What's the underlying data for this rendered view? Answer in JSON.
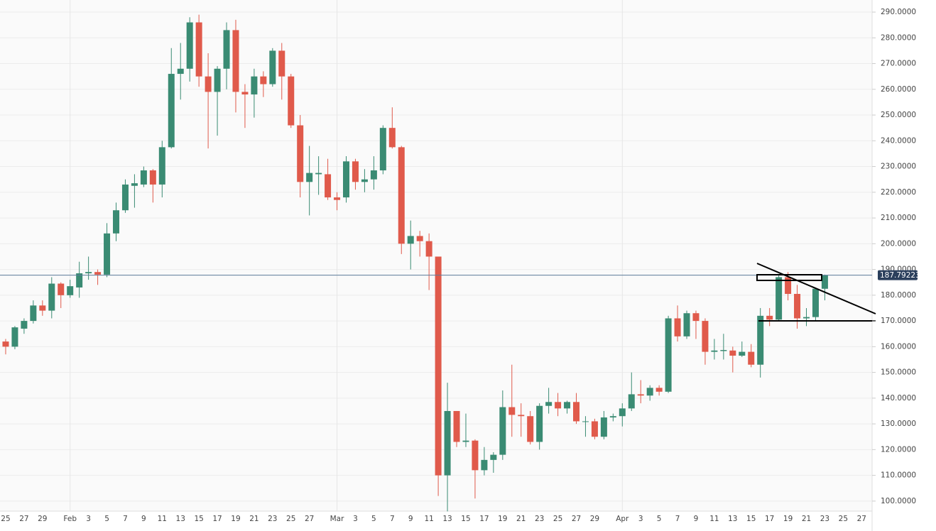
{
  "chart_data": {
    "type": "candlestick",
    "categories": [
      "25",
      null,
      "27",
      null,
      "29",
      null,
      null,
      "Feb",
      null,
      "3",
      null,
      "5",
      null,
      "7",
      null,
      "9",
      null,
      "11",
      null,
      "13",
      null,
      "15",
      null,
      "17",
      null,
      "19",
      null,
      "21",
      null,
      "23",
      null,
      "25",
      null,
      "27",
      null,
      null,
      "Mar",
      null,
      "3",
      null,
      "5",
      null,
      "7",
      null,
      "9",
      null,
      "11",
      null,
      "13",
      null,
      "15",
      null,
      "17",
      null,
      "19",
      null,
      "21",
      null,
      "23",
      null,
      "25",
      null,
      "27",
      null,
      "29",
      null,
      null,
      "Apr",
      null,
      "3",
      null,
      "5",
      null,
      "7",
      null,
      "9",
      null,
      "11",
      null,
      "13",
      null,
      "15",
      null,
      "17",
      null,
      "19",
      null,
      "21",
      null,
      "23",
      null,
      "25",
      null,
      "27"
    ],
    "open": [
      162,
      160,
      167,
      170,
      176,
      174,
      184.5,
      180,
      183,
      188.5,
      189,
      188,
      204,
      213,
      222.5,
      223,
      228.5,
      223,
      237.5,
      266,
      268,
      286,
      265,
      259,
      268,
      283,
      259,
      258,
      265,
      262,
      275,
      265,
      246,
      224,
      227,
      227,
      218,
      218,
      232,
      224,
      225,
      228.5,
      245,
      237.5,
      200,
      203,
      201,
      195,
      110,
      135,
      123,
      123.5,
      112,
      116,
      118,
      136.5,
      133.5,
      133,
      123,
      137,
      138.5,
      136,
      138.5,
      131,
      131,
      125,
      132.5,
      133,
      136,
      141.5,
      141,
      144,
      142.5,
      171,
      164,
      173,
      170,
      158,
      158.3,
      158.5,
      156.5,
      158,
      153,
      172,
      170.5,
      187,
      180.5,
      171,
      171.5,
      182.5,
      null,
      null,
      null,
      null
    ],
    "high": [
      163,
      168,
      171,
      178,
      178,
      187,
      185,
      186,
      193,
      195,
      190,
      208,
      216,
      225,
      227,
      230,
      229,
      240,
      276,
      278,
      288,
      289,
      274,
      269,
      286,
      287,
      262,
      268,
      267,
      276,
      278,
      266,
      250,
      238,
      234,
      233,
      220,
      234,
      233,
      229,
      234,
      246,
      253,
      238,
      209,
      205,
      204,
      195,
      146,
      135,
      134,
      124,
      121,
      119,
      143,
      153,
      138,
      135,
      138,
      144,
      142,
      139,
      142,
      133,
      132,
      135,
      134,
      138,
      150,
      147,
      145,
      145,
      172,
      176,
      174,
      174,
      171,
      163,
      165,
      160,
      162,
      161,
      175,
      175,
      188,
      189,
      184,
      175,
      183,
      188,
      null,
      null,
      null,
      null
    ],
    "low": [
      157,
      159,
      165,
      169,
      172,
      171,
      175,
      179,
      179,
      186,
      184,
      187,
      201,
      212,
      214,
      222,
      216,
      218,
      237,
      256,
      263,
      261,
      237,
      242,
      260,
      251,
      245,
      249,
      257,
      261,
      256,
      245,
      218,
      211,
      219,
      217,
      213,
      216,
      221,
      220,
      221,
      227,
      237,
      196,
      190,
      195,
      182,
      102,
      96,
      121,
      121,
      101,
      110,
      111,
      116,
      125,
      125,
      122,
      120,
      134,
      133,
      134,
      130,
      125,
      124,
      124,
      131,
      129,
      135,
      138,
      139,
      141,
      142,
      162,
      163,
      163,
      153,
      155,
      155,
      150,
      156,
      152,
      148,
      168,
      170,
      178,
      167,
      168,
      170,
      178,
      null,
      null,
      null,
      null
    ],
    "close": [
      160,
      167.5,
      170,
      176,
      174,
      184.5,
      180,
      183.5,
      188.5,
      189,
      188,
      204,
      213,
      223,
      223.5,
      228.5,
      223,
      237.5,
      266,
      268,
      286,
      265,
      259,
      268,
      283,
      259,
      258,
      265,
      262,
      275,
      265,
      246,
      224,
      227.5,
      227.5,
      218,
      217,
      232,
      224,
      225,
      228.5,
      245,
      237.5,
      200,
      203,
      201,
      195,
      110,
      135,
      123,
      123.5,
      112,
      116,
      118,
      136.5,
      133.5,
      133,
      123,
      137,
      138.5,
      136,
      138.5,
      131,
      131,
      125,
      132.5,
      133,
      136,
      141.5,
      141,
      144,
      142.5,
      171,
      164,
      173,
      170,
      158,
      158.5,
      158.7,
      156.5,
      158,
      153,
      172,
      170.5,
      187,
      180.5,
      171,
      171.5,
      182.5,
      187.8,
      null,
      null,
      null,
      null
    ],
    "up_color": "#3a8b73",
    "down_color": "#e05a4b",
    "ylim": [
      96.1,
      294.7
    ],
    "yticks": [
      {
        "value": 100,
        "label": "100.0000"
      },
      {
        "value": 110,
        "label": "110.0000"
      },
      {
        "value": 120,
        "label": "120.0000"
      },
      {
        "value": 130,
        "label": "130.0000"
      },
      {
        "value": 140,
        "label": "140.0000"
      },
      {
        "value": 150,
        "label": "150.0000"
      },
      {
        "value": 160,
        "label": "160.0000"
      },
      {
        "value": 170,
        "label": "170.0000"
      },
      {
        "value": 180,
        "label": "180.0000"
      },
      {
        "value": 190,
        "label": "190.0000"
      },
      {
        "value": 200,
        "label": "200.0000"
      },
      {
        "value": 210,
        "label": "210.0000"
      },
      {
        "value": 220,
        "label": "220.0000"
      },
      {
        "value": 230,
        "label": "230.0000"
      },
      {
        "value": 240,
        "label": "240.0000"
      },
      {
        "value": 250,
        "label": "250.0000"
      },
      {
        "value": 260,
        "label": "260.0000"
      },
      {
        "value": 270,
        "label": "270.0000"
      },
      {
        "value": 280,
        "label": "280.0000"
      },
      {
        "value": 290,
        "label": "290.0000"
      }
    ],
    "last_price": 187.79223,
    "last_price_color": "#2b3f5c",
    "grid": true
  }
}
